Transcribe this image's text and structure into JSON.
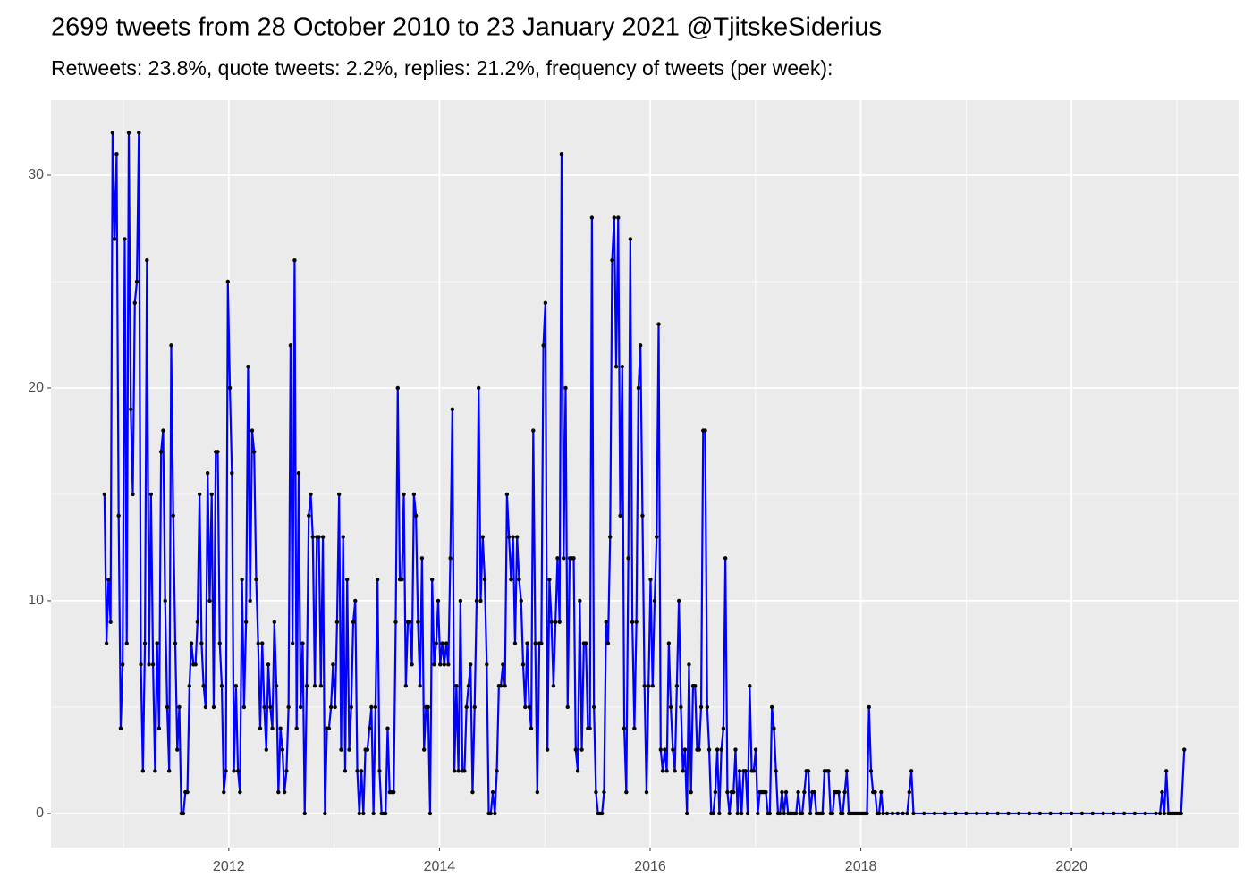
{
  "chart_data": {
    "type": "line",
    "title": "2699 tweets from 28 October 2010 to 23 January 2021 @TjitskeSiderius",
    "subtitle": "Retweets: 23.8%, quote tweets: 2.2%, replies: 21.2%, frequency of tweets (per week):",
    "color": "#0000ff",
    "point_color": "#000000",
    "xlim": [
      2010.312,
      2021.586
    ],
    "xticks": [
      2012,
      2014,
      2016,
      2018,
      2020
    ],
    "ylim": [
      -1.6,
      33.53
    ],
    "yticks": [
      0,
      10,
      20,
      30
    ],
    "grid": true,
    "minor_grid": true,
    "x": [
      2010.82,
      2010.8392,
      2010.8584,
      2010.8776,
      2010.8968,
      2010.916,
      2010.9352,
      2010.9544,
      2010.9736,
      2010.9928,
      2011.012,
      2011.0312,
      2011.0504,
      2011.0696,
      2011.0888,
      2011.108,
      2011.1272,
      2011.1464,
      2011.1656,
      2011.1848,
      2011.204,
      2011.2232,
      2011.2424,
      2011.2616,
      2011.2808,
      2011.3,
      2011.3192,
      2011.3384,
      2011.3576,
      2011.3768,
      2011.396,
      2011.4152,
      2011.4344,
      2011.4536,
      2011.4728,
      2011.492,
      2011.5112,
      2011.5304,
      2011.5496,
      2011.5688,
      2011.588,
      2011.6072,
      2011.6264,
      2011.6456,
      2011.6648,
      2011.684,
      2011.7032,
      2011.7224,
      2011.7416,
      2011.7608,
      2011.78,
      2011.7992,
      2011.8184,
      2011.8376,
      2011.8568,
      2011.876,
      2011.8952,
      2011.9144,
      2011.9336,
      2011.9528,
      2011.972,
      2011.9912,
      2012.0104,
      2012.0296,
      2012.0488,
      2012.068,
      2012.0872,
      2012.1064,
      2012.1256,
      2012.1448,
      2012.164,
      2012.1832,
      2012.2024,
      2012.2216,
      2012.2408,
      2012.26,
      2012.2792,
      2012.2984,
      2012.3176,
      2012.3368,
      2012.356,
      2012.3752,
      2012.3944,
      2012.4136,
      2012.4328,
      2012.452,
      2012.4712,
      2012.4904,
      2012.5096,
      2012.5288,
      2012.548,
      2012.5672,
      2012.5864,
      2012.6056,
      2012.6248,
      2012.644,
      2012.6632,
      2012.6824,
      2012.7016,
      2012.7208,
      2012.74,
      2012.7592,
      2012.7784,
      2012.7976,
      2012.8168,
      2012.836,
      2012.8552,
      2012.8744,
      2012.8936,
      2012.9128,
      2012.932,
      2012.9512,
      2012.9704,
      2012.9896,
      2013.0088,
      2013.028,
      2013.0472,
      2013.0664,
      2013.0856,
      2013.1048,
      2013.124,
      2013.1432,
      2013.1624,
      2013.1816,
      2013.2008,
      2013.22,
      2013.2392,
      2013.2584,
      2013.2776,
      2013.2968,
      2013.316,
      2013.3352,
      2013.3544,
      2013.3736,
      2013.3928,
      2013.412,
      2013.4312,
      2013.4504,
      2013.4696,
      2013.4888,
      2013.508,
      2013.5272,
      2013.5464,
      2013.5656,
      2013.5848,
      2013.604,
      2013.6232,
      2013.6424,
      2013.6616,
      2013.6808,
      2013.7,
      2013.7192,
      2013.7384,
      2013.7576,
      2013.7768,
      2013.796,
      2013.8152,
      2013.8344,
      2013.8536,
      2013.8728,
      2013.892,
      2013.9112,
      2013.9304,
      2013.9496,
      2013.9688,
      2013.988,
      2014.0072,
      2014.0264,
      2014.0456,
      2014.0648,
      2014.084,
      2014.1032,
      2014.1224,
      2014.1416,
      2014.1608,
      2014.18,
      2014.1992,
      2014.2184,
      2014.2376,
      2014.2568,
      2014.276,
      2014.2952,
      2014.3144,
      2014.3336,
      2014.3528,
      2014.372,
      2014.3912,
      2014.4104,
      2014.4296,
      2014.4488,
      2014.468,
      2014.4872,
      2014.5064,
      2014.5256,
      2014.5448,
      2014.564,
      2014.5832,
      2014.6024,
      2014.6216,
      2014.6408,
      2014.66,
      2014.6792,
      2014.6984,
      2014.7176,
      2014.7368,
      2014.756,
      2014.7752,
      2014.7944,
      2014.8136,
      2014.8328,
      2014.852,
      2014.8712,
      2014.8904,
      2014.9096,
      2014.9288,
      2014.948,
      2014.9672,
      2014.9864,
      2015.0056,
      2015.0248,
      2015.044,
      2015.0632,
      2015.0824,
      2015.1016,
      2015.1208,
      2015.14,
      2015.1592,
      2015.1784,
      2015.1976,
      2015.2168,
      2015.236,
      2015.2552,
      2015.2744,
      2015.2936,
      2015.3128,
      2015.332,
      2015.3512,
      2015.3704,
      2015.3896,
      2015.4088,
      2015.428,
      2015.4472,
      2015.4664,
      2015.4856,
      2015.5048,
      2015.524,
      2015.5432,
      2015.5624,
      2015.5816,
      2015.6008,
      2015.62,
      2015.6392,
      2015.6584,
      2015.6776,
      2015.6968,
      2015.716,
      2015.7352,
      2015.7544,
      2015.7736,
      2015.7928,
      2015.812,
      2015.8312,
      2015.8504,
      2015.8696,
      2015.8888,
      2015.908,
      2015.9272,
      2015.9464,
      2015.9656,
      2015.9848,
      2016.004,
      2016.0232,
      2016.0424,
      2016.0616,
      2016.0808,
      2016.1,
      2016.1192,
      2016.1384,
      2016.1576,
      2016.1768,
      2016.196,
      2016.2152,
      2016.2344,
      2016.2536,
      2016.2728,
      2016.292,
      2016.3112,
      2016.3304,
      2016.3496,
      2016.3688,
      2016.388,
      2016.4072,
      2016.4264,
      2016.4456,
      2016.4648,
      2016.484,
      2016.5032,
      2016.5224,
      2016.5416,
      2016.5608,
      2016.58,
      2016.5992,
      2016.6184,
      2016.6376,
      2016.6568,
      2016.676,
      2016.6952,
      2016.7144,
      2016.7336,
      2016.7528,
      2016.772,
      2016.7912,
      2016.8104,
      2016.8296,
      2016.8488,
      2016.868,
      2016.8872,
      2016.9064,
      2016.9256,
      2016.9448,
      2016.964,
      2016.9832,
      2017.0024,
      2017.0216,
      2017.0408,
      2017.06,
      2017.0792,
      2017.0984,
      2017.1176,
      2017.1368,
      2017.156,
      2017.1752,
      2017.1944,
      2017.2136,
      2017.2328,
      2017.252,
      2017.2712,
      2017.2904,
      2017.3096,
      2017.3288,
      2017.348,
      2017.3672,
      2017.3864,
      2017.4056,
      2017.4248,
      2017.444,
      2017.4632,
      2017.4824,
      2017.5016,
      2017.5208,
      2017.54,
      2017.5592,
      2017.5784,
      2017.5976,
      2017.6168,
      2017.636,
      2017.6552,
      2017.6744,
      2017.6936,
      2017.7128,
      2017.732,
      2017.7512,
      2017.7704,
      2017.7896,
      2017.8088,
      2017.828,
      2017.8472,
      2017.8664,
      2017.8856,
      2017.9048,
      2017.924,
      2017.9432,
      2017.9624,
      2017.9816,
      2018.0008,
      2018.02,
      2018.0392,
      2018.0584,
      2018.0776,
      2018.0968,
      2018.116,
      2018.1352,
      2018.1544,
      2018.1736,
      2018.1928,
      2018.212,
      2018.25,
      2018.3,
      2018.35,
      2018.4,
      2018.44,
      2018.46,
      2018.48,
      2018.5,
      2018.6,
      2018.7,
      2018.8,
      2018.9,
      2019,
      2019.1,
      2019.2,
      2019.3,
      2019.4,
      2019.5,
      2019.6,
      2019.7,
      2019.8,
      2019.9,
      2020,
      2020.1,
      2020.2,
      2020.3,
      2020.4,
      2020.5,
      2020.6,
      2020.7,
      2020.8,
      2020.84,
      2020.86,
      2020.88,
      2020.9,
      2020.92,
      2020.94,
      2020.96,
      2020.98,
      2021,
      2021.02,
      2021.04,
      2021.07
    ],
    "values": [
      15,
      8,
      11,
      9,
      32,
      27,
      31,
      14,
      4,
      7,
      27,
      8,
      32,
      19,
      15,
      24,
      25,
      32,
      7,
      2,
      8,
      26,
      7,
      15,
      7,
      2,
      8,
      4,
      17,
      18,
      10,
      5,
      2,
      22,
      14,
      8,
      3,
      5,
      0,
      0,
      1,
      1,
      6,
      8,
      7,
      7,
      9,
      15,
      8,
      6,
      5,
      16,
      10,
      15,
      5,
      17,
      17,
      8,
      6,
      1,
      2,
      25,
      20,
      16,
      2,
      6,
      2,
      1,
      11,
      5,
      9,
      21,
      10,
      18,
      17,
      11,
      8,
      4,
      8,
      5,
      3,
      7,
      5,
      4,
      9,
      6,
      1,
      4,
      3,
      1,
      2,
      5,
      22,
      8,
      26,
      4,
      16,
      5,
      8,
      0,
      6,
      14,
      15,
      13,
      6,
      13,
      13,
      6,
      13,
      0,
      4,
      4,
      5,
      7,
      5,
      9,
      15,
      3,
      13,
      2,
      11,
      3,
      5,
      9,
      10,
      2,
      0,
      2,
      0,
      3,
      3,
      4,
      5,
      0,
      5,
      11,
      2,
      0,
      0,
      0,
      4,
      1,
      1,
      1,
      9,
      20,
      11,
      11,
      15,
      6,
      9,
      9,
      7,
      15,
      14,
      9,
      6,
      12,
      3,
      5,
      5,
      0,
      11,
      7,
      8,
      10,
      7,
      8,
      7,
      8,
      7,
      12,
      19,
      2,
      6,
      2,
      10,
      2,
      2,
      5,
      6,
      7,
      1,
      5,
      10,
      20,
      10,
      13,
      11,
      7,
      0,
      0,
      1,
      0,
      2,
      6,
      6,
      7,
      6,
      15,
      13,
      11,
      13,
      8,
      13,
      11,
      10,
      7,
      5,
      8,
      5,
      4,
      18,
      8,
      1,
      8,
      8,
      22,
      24,
      3,
      11,
      9,
      6,
      9,
      12,
      9,
      31,
      12,
      20,
      5,
      12,
      12,
      12,
      3,
      2,
      10,
      3,
      8,
      8,
      4,
      4,
      28,
      5,
      1,
      0,
      0,
      0,
      1,
      9,
      8,
      13,
      26,
      28,
      21,
      28,
      14,
      21,
      4,
      1,
      12,
      27,
      9,
      4,
      9,
      20,
      22,
      14,
      6,
      1,
      6,
      11,
      6,
      10,
      13,
      23,
      3,
      2,
      3,
      2,
      8,
      5,
      3,
      2,
      6,
      10,
      5,
      2,
      3,
      0,
      7,
      1,
      6,
      6,
      3,
      3,
      5,
      18,
      18,
      5,
      3,
      0,
      0,
      1,
      3,
      0,
      3,
      4,
      12,
      1,
      0,
      1,
      1,
      3,
      0,
      2,
      0,
      2,
      2,
      0,
      6,
      2,
      2,
      3,
      0,
      1,
      1,
      1,
      1,
      0,
      0,
      5,
      4,
      2,
      0,
      0,
      1,
      0,
      1,
      0,
      0,
      0,
      0,
      0,
      1,
      0,
      0,
      1,
      2,
      2,
      0,
      1,
      1,
      0,
      0,
      0,
      0,
      2,
      2,
      2,
      0,
      0,
      1,
      1,
      1,
      0,
      0,
      1,
      2,
      0,
      0,
      0,
      0,
      0,
      0,
      0,
      0,
      0,
      0,
      5,
      2,
      1,
      1,
      0,
      0,
      1,
      0,
      0,
      0,
      0,
      0,
      0,
      1,
      2,
      0,
      0,
      0,
      0,
      0,
      0,
      0,
      0,
      0,
      0,
      0,
      0,
      0,
      0,
      0,
      0,
      0,
      0,
      0,
      0,
      0,
      0,
      0,
      0,
      0,
      1,
      0,
      2,
      0,
      0,
      0,
      0,
      0,
      0,
      0,
      3
    ]
  }
}
